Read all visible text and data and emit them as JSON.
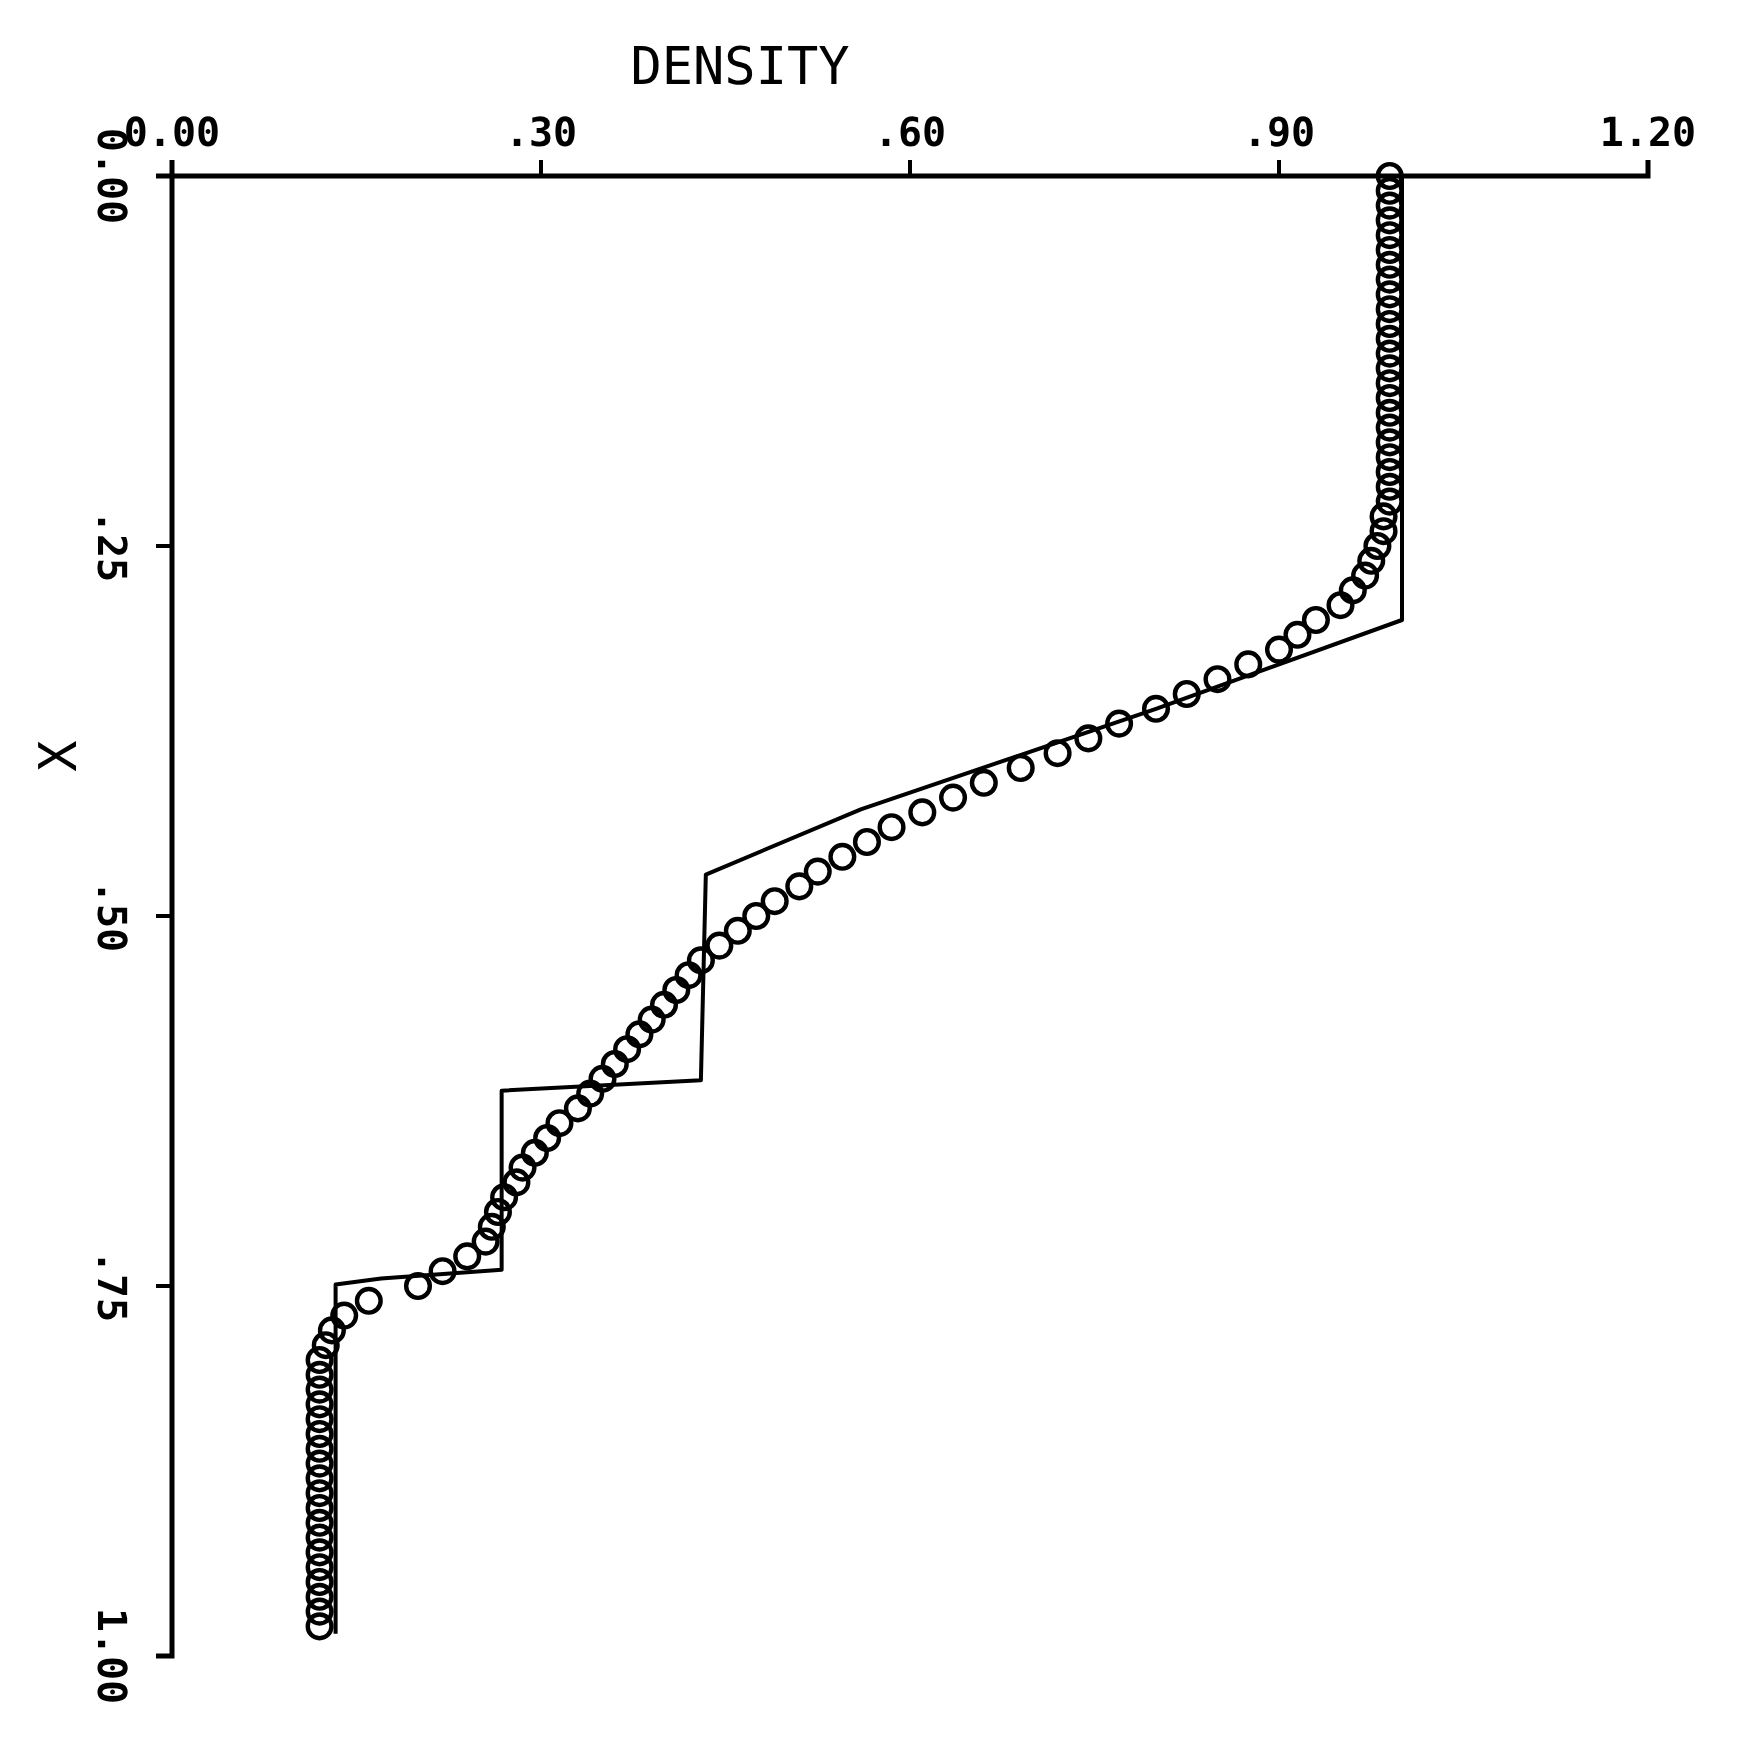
{
  "chart_data": {
    "type": "scatter",
    "xlabel": "DENSITY",
    "ylabel": "X",
    "xlim": [
      0,
      1.2
    ],
    "xticks": [
      {
        "value": 0,
        "label": "0.00"
      },
      {
        "value": 0.3,
        "label": ".30"
      },
      {
        "value": 0.6,
        "label": ".60"
      },
      {
        "value": 0.9,
        "label": ".90"
      },
      {
        "value": 1.2,
        "label": "1.20"
      }
    ],
    "ylim": [
      1,
      0
    ],
    "yticks": [
      {
        "value": 0,
        "label": "0.00"
      },
      {
        "value": 0.25,
        "label": ".25"
      },
      {
        "value": 0.5,
        "label": ".50"
      },
      {
        "value": 0.75,
        "label": ".75"
      },
      {
        "value": 1,
        "label": "1.00"
      }
    ],
    "grid": false,
    "series": [
      {
        "type": "line",
        "color": "#000000",
        "line_style": "solid",
        "x": [
          1.0,
          1.0,
          0.8,
          0.56,
          0.434,
          0.43,
          0.268,
          0.268,
          0.17,
          0.133,
          0.133
        ],
        "values": [
          0,
          0.3,
          0.36,
          0.428,
          0.472,
          0.611,
          0.618,
          0.739,
          0.745,
          0.749,
          0.985
        ]
      },
      {
        "color": "#000000",
        "marker": "circle",
        "x": [
          0.99,
          0.99,
          0.99,
          0.99,
          0.99,
          0.99,
          0.99,
          0.99,
          0.99,
          0.99,
          0.99,
          0.99,
          0.99,
          0.99,
          0.99,
          0.99,
          0.99,
          0.99,
          0.99,
          0.99,
          0.99,
          0.99,
          0.99,
          0.985,
          0.985,
          0.98,
          0.975,
          0.97,
          0.96,
          0.95,
          0.93,
          0.915,
          0.9,
          0.875,
          0.85,
          0.825,
          0.8,
          0.77,
          0.745,
          0.72,
          0.69,
          0.66,
          0.635,
          0.61,
          0.585,
          0.565,
          0.545,
          0.525,
          0.51,
          0.49,
          0.475,
          0.46,
          0.445,
          0.43,
          0.42,
          0.41,
          0.4,
          0.39,
          0.38,
          0.37,
          0.36,
          0.35,
          0.34,
          0.33,
          0.315,
          0.305,
          0.295,
          0.285,
          0.28,
          0.27,
          0.265,
          0.26,
          0.255,
          0.24,
          0.22,
          0.2,
          0.16,
          0.14,
          0.13,
          0.125,
          0.12,
          0.12,
          0.12,
          0.12,
          0.12,
          0.12,
          0.12,
          0.12,
          0.12,
          0.12,
          0.12,
          0.12,
          0.12,
          0.12,
          0.12,
          0.12,
          0.12,
          0.12,
          0.12
        ],
        "values": [
          0,
          0.01,
          0.02,
          0.03,
          0.04,
          0.05,
          0.06,
          0.07,
          0.08,
          0.09,
          0.1,
          0.11,
          0.12,
          0.13,
          0.14,
          0.15,
          0.16,
          0.17,
          0.18,
          0.19,
          0.2,
          0.21,
          0.22,
          0.23,
          0.24,
          0.25,
          0.26,
          0.27,
          0.28,
          0.29,
          0.3,
          0.31,
          0.32,
          0.33,
          0.34,
          0.35,
          0.36,
          0.37,
          0.38,
          0.39,
          0.4,
          0.41,
          0.42,
          0.43,
          0.44,
          0.45,
          0.46,
          0.47,
          0.48,
          0.49,
          0.5,
          0.51,
          0.52,
          0.53,
          0.54,
          0.55,
          0.56,
          0.57,
          0.58,
          0.59,
          0.6,
          0.61,
          0.62,
          0.63,
          0.64,
          0.65,
          0.66,
          0.67,
          0.68,
          0.69,
          0.7,
          0.71,
          0.72,
          0.73,
          0.74,
          0.75,
          0.76,
          0.77,
          0.78,
          0.79,
          0.8,
          0.81,
          0.82,
          0.83,
          0.84,
          0.85,
          0.86,
          0.87,
          0.88,
          0.89,
          0.9,
          0.91,
          0.92,
          0.93,
          0.94,
          0.95,
          0.96,
          0.97,
          0.98
        ]
      }
    ]
  }
}
